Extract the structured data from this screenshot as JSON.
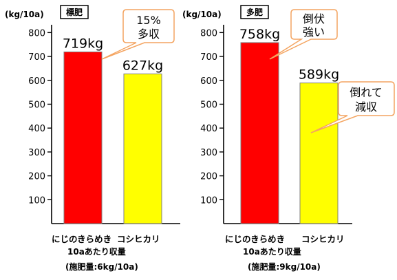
{
  "chart_data": [
    {
      "type": "bar",
      "title": "標肥",
      "ylabel": "(kg/10a)",
      "ylim": [
        0,
        850
      ],
      "yticks": [
        100,
        200,
        300,
        400,
        500,
        600,
        700,
        800
      ],
      "categories": [
        "にじのきらめき",
        "コシヒカリ"
      ],
      "values": [
        719,
        627
      ],
      "value_labels": [
        "719kg",
        "627kg"
      ],
      "bar_colors": [
        "#ff0000",
        "#ffff00"
      ],
      "xlabel": "10aあたり収量",
      "note": "(施肥量:6kg/10a)",
      "callout": [
        "15%",
        "多収"
      ]
    },
    {
      "type": "bar",
      "title": "多肥",
      "ylabel": "(kg/10a)",
      "ylim": [
        0,
        850
      ],
      "yticks": [
        100,
        200,
        300,
        400,
        500,
        600,
        700,
        800
      ],
      "categories": [
        "にじのきらめき",
        "コシヒカリ"
      ],
      "values": [
        758,
        589
      ],
      "value_labels": [
        "758kg",
        "589kg"
      ],
      "bar_colors": [
        "#ff0000",
        "#ffff00"
      ],
      "xlabel": "10aあたり収量",
      "note": "(施肥量:9kg/10a)",
      "callouts": [
        [
          "倒伏",
          "強い"
        ],
        [
          "倒れて",
          "減収"
        ]
      ]
    }
  ],
  "colors": {
    "callout_border": "#f4a460",
    "bar_stroke": "#7f7f7f"
  }
}
